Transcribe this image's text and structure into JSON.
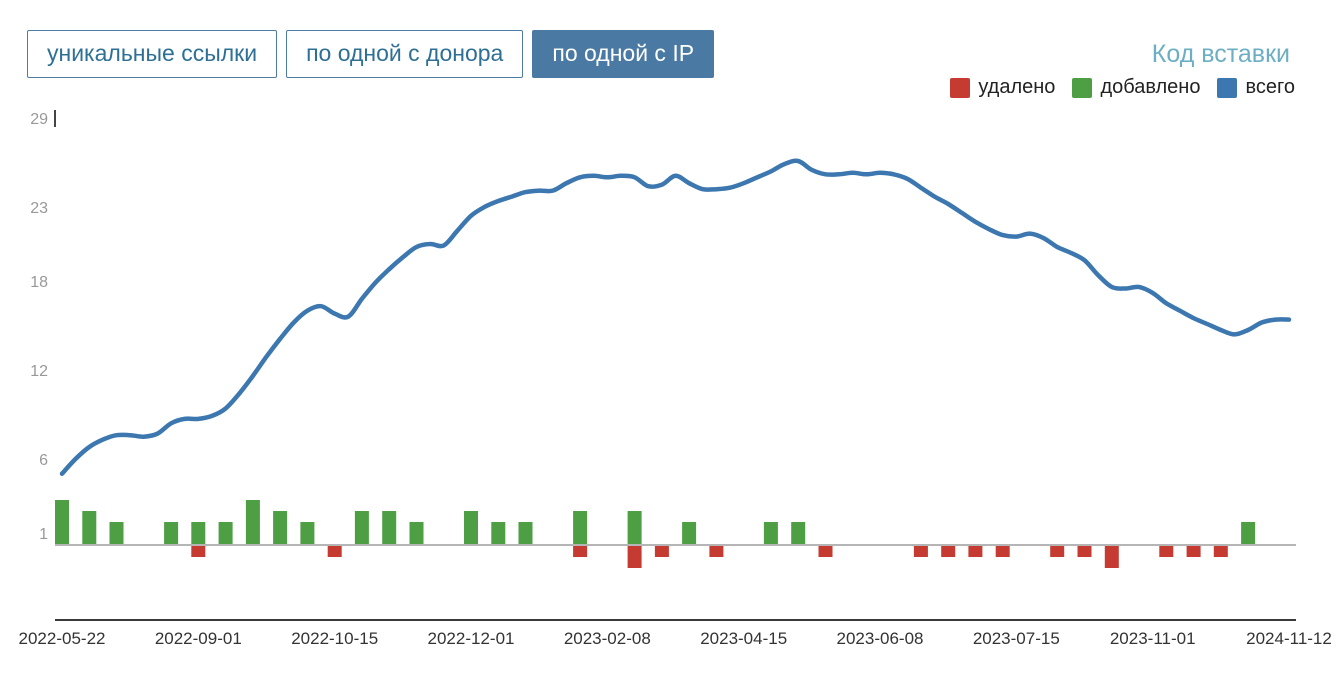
{
  "tabs": [
    {
      "label": "уникальные ссылки",
      "active": false
    },
    {
      "label": "по одной с донора",
      "active": false
    },
    {
      "label": "по одной с IP",
      "active": true
    }
  ],
  "embed_link": {
    "label": "Код вставки"
  },
  "legend": [
    {
      "label": "удалено",
      "color": "#c53a31"
    },
    {
      "label": "добавлено",
      "color": "#4e9e44"
    },
    {
      "label": "всего",
      "color": "#3c77b0"
    }
  ],
  "chart_data": {
    "type": "line",
    "title": "",
    "xlabel": "",
    "ylabel": "",
    "legend_position": "top-right",
    "grid": "baseline-only",
    "x_tick_labels": [
      "2022-05-22",
      "2022-09-01",
      "2022-10-15",
      "2022-12-01",
      "2023-02-08",
      "2023-04-15",
      "2023-06-08",
      "2023-07-15",
      "2023-11-01",
      "2024-11-12"
    ],
    "y_ticks": [
      29,
      23,
      18,
      12,
      6,
      1
    ],
    "ylim": [
      0,
      29
    ],
    "points_per_tick_gap": 10,
    "series": [
      {
        "name": "всего",
        "kind": "line",
        "color": "#3c77b0",
        "values": [
          5.0,
          6.0,
          6.8,
          7.3,
          7.6,
          7.6,
          7.5,
          7.7,
          8.4,
          8.7,
          8.7,
          8.9,
          9.4,
          10.4,
          11.6,
          12.9,
          14.1,
          15.2,
          16.0,
          16.3,
          15.8,
          15.6,
          16.8,
          17.9,
          18.8,
          19.6,
          20.3,
          20.5,
          20.4,
          21.4,
          22.4,
          23.0,
          23.4,
          23.7,
          24.0,
          24.1,
          24.1,
          24.6,
          25.0,
          25.1,
          25.0,
          25.1,
          25.0,
          24.4,
          24.5,
          25.1,
          24.6,
          24.2,
          24.2,
          24.3,
          24.6,
          25.0,
          25.4,
          25.9,
          26.1,
          25.5,
          25.2,
          25.2,
          25.3,
          25.2,
          25.3,
          25.2,
          24.9,
          24.3,
          23.7,
          23.2,
          22.6,
          22.0,
          21.5,
          21.1,
          21.0,
          21.2,
          20.9,
          20.3,
          19.9,
          19.4,
          18.4,
          17.6,
          17.5,
          17.6,
          17.2,
          16.5,
          16.0,
          15.5,
          15.1,
          14.7,
          14.4,
          14.7,
          15.2,
          15.4,
          15.4
        ]
      },
      {
        "name": "добавлено",
        "kind": "bar-up",
        "color": "#4e9e44",
        "bars": [
          [
            0,
            2
          ],
          [
            2,
            1.5
          ],
          [
            4,
            1
          ],
          [
            8,
            1
          ],
          [
            10,
            1
          ],
          [
            12,
            1
          ],
          [
            14,
            2
          ],
          [
            16,
            1.5
          ],
          [
            18,
            1
          ],
          [
            22,
            1.5
          ],
          [
            24,
            1.5
          ],
          [
            26,
            1
          ],
          [
            30,
            1.5
          ],
          [
            32,
            1
          ],
          [
            34,
            1
          ],
          [
            38,
            1.5
          ],
          [
            42,
            1.5
          ],
          [
            46,
            1
          ],
          [
            52,
            1
          ],
          [
            54,
            1
          ],
          [
            87,
            1
          ]
        ]
      },
      {
        "name": "удалено",
        "kind": "bar-down",
        "color": "#c53a31",
        "bars": [
          [
            10,
            0.5
          ],
          [
            20,
            0.5
          ],
          [
            38,
            0.5
          ],
          [
            42,
            1
          ],
          [
            44,
            0.5
          ],
          [
            48,
            0.5
          ],
          [
            56,
            0.5
          ],
          [
            63,
            0.5
          ],
          [
            65,
            0.5
          ],
          [
            67,
            0.5
          ],
          [
            69,
            0.5
          ],
          [
            73,
            0.5
          ],
          [
            75,
            0.5
          ],
          [
            77,
            1
          ],
          [
            81,
            0.5
          ],
          [
            83,
            0.5
          ],
          [
            85,
            0.5
          ]
        ]
      }
    ]
  }
}
